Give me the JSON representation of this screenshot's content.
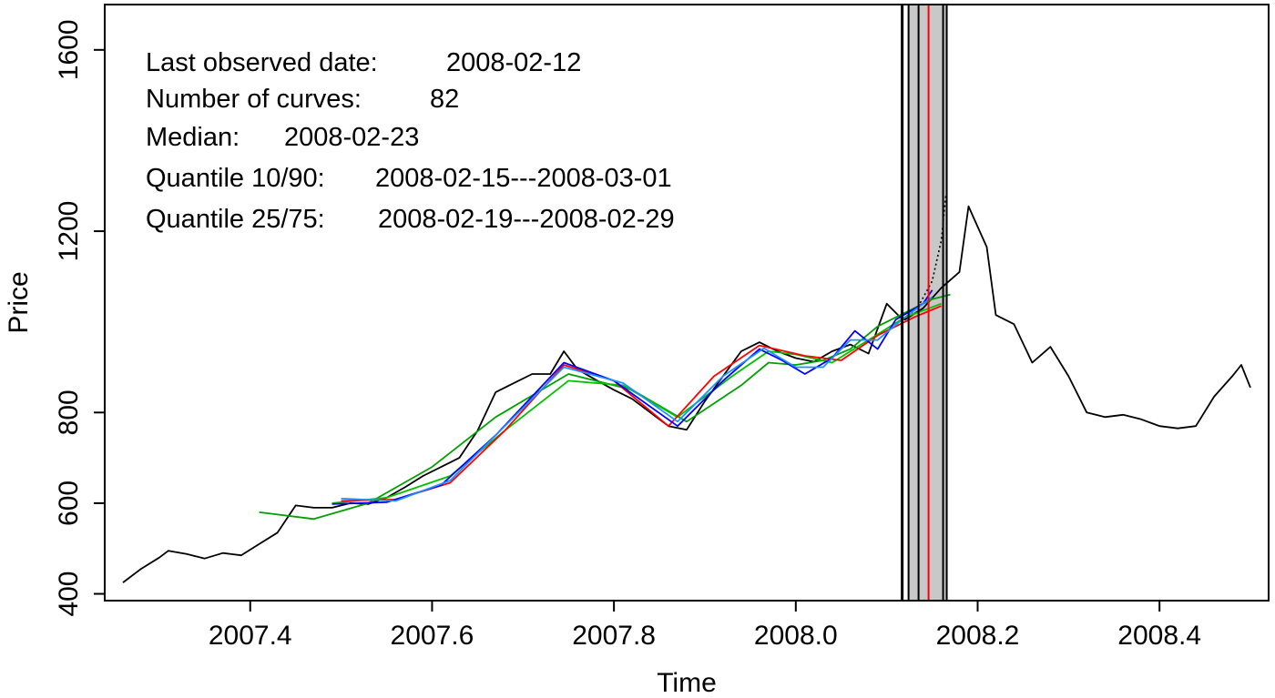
{
  "chart_data": {
    "type": "line",
    "xlabel": "Time",
    "ylabel": "Price",
    "xlim": [
      2007.24,
      2008.52
    ],
    "ylim": [
      385,
      1700
    ],
    "xticks": [
      2007.4,
      2007.6,
      2007.8,
      2008.0,
      2008.2,
      2008.4
    ],
    "xtick_labels": [
      "2007.4",
      "2007.6",
      "2007.8",
      "2008.0",
      "2008.2",
      "2008.4"
    ],
    "yticks": [
      400,
      600,
      800,
      1200,
      1600
    ],
    "ytick_labels": [
      "400",
      "600",
      "800",
      "1200",
      "1600"
    ],
    "grid": false,
    "annotations": [
      {
        "label": "Last observed date:",
        "value": "2008-02-12"
      },
      {
        "label": "Number of curves:",
        "value": "82"
      },
      {
        "label": "Median:",
        "value": "2008-02-23"
      },
      {
        "label": "Quantile 10/90:",
        "value": "2008-02-15---2008-03-01"
      },
      {
        "label": "Quantile 25/75:",
        "value": "2008-02-19---2008-02-29"
      }
    ],
    "vertical_lines": {
      "last_observed": 2008.117,
      "median": 2008.146,
      "quantile_10": 2008.124,
      "quantile_90": 2008.166,
      "quantile_25": 2008.135,
      "quantile_75": 2008.162
    },
    "series": [
      {
        "color": "#000000",
        "style": "solid",
        "x": [
          2007.26,
          2007.28,
          2007.3,
          2007.31,
          2007.33,
          2007.35,
          2007.37,
          2007.39,
          2007.41,
          2007.43,
          2007.45,
          2007.47,
          2007.49,
          2007.51,
          2007.53,
          2007.55,
          2007.57,
          2007.59,
          2007.61,
          2007.63,
          2007.65,
          2007.67,
          2007.69,
          2007.71,
          2007.73,
          2007.745,
          2007.76,
          2007.78,
          2007.8,
          2007.82,
          2007.84,
          2007.86,
          2007.88,
          2007.9,
          2007.92,
          2007.94,
          2007.96,
          2007.98,
          2008.0,
          2008.02,
          2008.04,
          2008.06,
          2008.08,
          2008.1,
          2008.115,
          2008.12,
          2008.14,
          2008.16,
          2008.18,
          2008.19,
          2008.21,
          2008.22,
          2008.24,
          2008.26,
          2008.28,
          2008.3,
          2008.32,
          2008.34,
          2008.36,
          2008.38,
          2008.4,
          2008.42,
          2008.44,
          2008.46,
          2008.48,
          2008.49,
          2008.5
        ],
        "y": [
          425,
          455,
          480,
          495,
          488,
          478,
          490,
          485,
          510,
          535,
          595,
          590,
          590,
          600,
          598,
          612,
          635,
          660,
          680,
          700,
          760,
          845,
          865,
          885,
          885,
          935,
          895,
          872,
          850,
          830,
          800,
          770,
          762,
          825,
          880,
          935,
          955,
          935,
          920,
          912,
          935,
          950,
          930,
          1040,
          1010,
          1005,
          1030,
          1075,
          1110,
          1255,
          1165,
          1015,
          995,
          910,
          945,
          880,
          800,
          790,
          795,
          785,
          770,
          765,
          770,
          835,
          880,
          905,
          855
        ]
      },
      {
        "color": "#000000",
        "style": "dotted",
        "x": [
          2008.12,
          2008.135,
          2008.15,
          2008.16,
          2008.165
        ],
        "y": [
          1005,
          1035,
          1090,
          1180,
          1280
        ]
      },
      {
        "color": "#00a000",
        "style": "solid",
        "x": [
          2007.41,
          2007.47,
          2007.53,
          2007.6,
          2007.67,
          2007.75,
          2007.82,
          2007.88,
          2007.94,
          2007.97,
          2008.0,
          2008.03,
          2008.06,
          2008.09,
          2008.12,
          2008.15,
          2008.17
        ],
        "y": [
          580,
          565,
          600,
          680,
          790,
          885,
          850,
          780,
          860,
          910,
          905,
          915,
          940,
          990,
          1020,
          1050,
          1060
        ]
      },
      {
        "color": "#00c000",
        "style": "solid",
        "x": [
          2007.49,
          2007.55,
          2007.62,
          2007.68,
          2007.75,
          2007.81,
          2007.87,
          2007.93,
          2007.97,
          2008.0,
          2008.04,
          2008.08,
          2008.12,
          2008.16
        ],
        "y": [
          600,
          612,
          660,
          760,
          870,
          860,
          790,
          880,
          935,
          928,
          910,
          960,
          1010,
          1040
        ]
      },
      {
        "color": "#ff0000",
        "style": "solid",
        "x": [
          2007.5,
          2007.56,
          2007.62,
          2007.68,
          2007.745,
          2007.8,
          2007.86,
          2007.91,
          2007.96,
          2008.01,
          2008.05,
          2008.09,
          2008.13,
          2008.16
        ],
        "y": [
          605,
          608,
          645,
          760,
          905,
          870,
          770,
          880,
          948,
          925,
          915,
          970,
          1010,
          1035
        ]
      },
      {
        "color": "#0000ff",
        "style": "solid",
        "x": [
          2007.49,
          2007.55,
          2007.61,
          2007.67,
          2007.745,
          2007.8,
          2007.87,
          2007.92,
          2007.96,
          2007.985,
          2008.01,
          2008.04,
          2008.065,
          2008.09,
          2008.11,
          2008.14,
          2008.15
        ],
        "y": [
          598,
          602,
          640,
          750,
          910,
          870,
          770,
          870,
          940,
          915,
          885,
          920,
          980,
          940,
          1005,
          1040,
          1070
        ]
      },
      {
        "color": "#1e90ff",
        "style": "solid",
        "x": [
          2007.5,
          2007.56,
          2007.62,
          2007.69,
          2007.745,
          2007.81,
          2007.87,
          2007.92,
          2007.965,
          2008.0,
          2008.03,
          2008.06,
          2008.09,
          2008.12,
          2008.15
        ],
        "y": [
          610,
          605,
          650,
          790,
          900,
          865,
          780,
          880,
          942,
          900,
          900,
          960,
          960,
          1010,
          1055
        ]
      }
    ]
  }
}
